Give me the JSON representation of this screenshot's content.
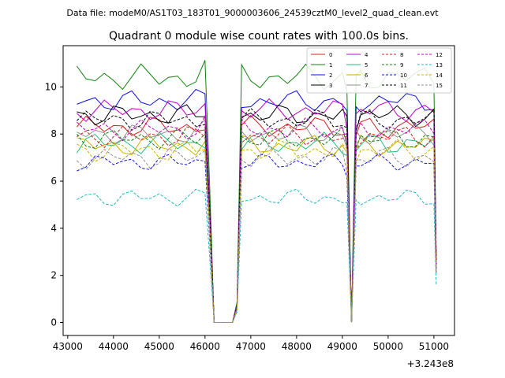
{
  "header": {
    "data_file": "Data file: modeM0/AS1T03_183T01_9000003606_24539cztM0_level2_quad_clean.evt"
  },
  "chart_data": {
    "type": "line",
    "title": "Quadrant 0 module wise count rates with 100.0s bins.",
    "xlabel": "",
    "ylabel": "",
    "x_offset_label": "+3.243e8",
    "xlim": [
      42900,
      51450
    ],
    "ylim": [
      -0.55,
      11.75
    ],
    "x_ticks": [
      43000,
      44000,
      45000,
      46000,
      47000,
      48000,
      49000,
      50000,
      51000
    ],
    "y_ticks": [
      0,
      2,
      4,
      6,
      8,
      10
    ],
    "legend_position": "top-right",
    "legend_columns": 4,
    "x": [
      43200,
      43400,
      43600,
      43800,
      44000,
      44200,
      44400,
      44600,
      44800,
      45000,
      45200,
      45400,
      45600,
      45800,
      46000,
      46100,
      46200,
      46300,
      46400,
      46500,
      46600,
      46700,
      46800,
      47000,
      47200,
      47400,
      47600,
      47800,
      48000,
      48200,
      48400,
      48600,
      48800,
      49000,
      49100,
      49200,
      49300,
      49400,
      49600,
      49800,
      50000,
      50200,
      50400,
      50600,
      50800,
      51000,
      51050
    ],
    "gap_pattern": [
      1,
      1,
      1,
      1,
      1,
      1,
      1,
      1,
      1,
      1,
      1,
      1,
      1,
      1,
      1.02,
      0.55,
      0,
      0,
      0,
      0,
      0,
      0.08,
      1,
      1,
      1,
      1,
      1,
      1,
      1,
      1,
      1,
      1,
      1,
      1,
      0.95,
      0,
      0.97,
      1,
      1,
      1,
      1,
      1,
      1,
      1,
      1,
      1,
      0.3
    ],
    "series": [
      {
        "name": "0",
        "color": "#d62020",
        "dash": "solid",
        "level": 8.3,
        "wiggle": 0.5
      },
      {
        "name": "1",
        "color": "#108010",
        "dash": "solid",
        "level": 10.4,
        "wiggle": 0.6
      },
      {
        "name": "2",
        "color": "#1010e0",
        "dash": "solid",
        "level": 9.4,
        "wiggle": 0.5
      },
      {
        "name": "3",
        "color": "#000000",
        "dash": "solid",
        "level": 8.8,
        "wiggle": 0.5
      },
      {
        "name": "4",
        "color": "#c000c0",
        "dash": "solid",
        "level": 9.0,
        "wiggle": 0.5
      },
      {
        "name": "5",
        "color": "#20c080",
        "dash": "solid",
        "level": 7.6,
        "wiggle": 0.5
      },
      {
        "name": "6",
        "color": "#d0b000",
        "dash": "solid",
        "level": 7.5,
        "wiggle": 0.5
      },
      {
        "name": "7",
        "color": "#909090",
        "dash": "solid",
        "level": 8.0,
        "wiggle": 0.5
      },
      {
        "name": "8",
        "color": "#d62020",
        "dash": "dashed",
        "level": 7.9,
        "wiggle": 0.5
      },
      {
        "name": "9",
        "color": "#108010",
        "dash": "dashed",
        "level": 7.8,
        "wiggle": 0.5
      },
      {
        "name": "10",
        "color": "#1010e0",
        "dash": "dashed",
        "level": 6.8,
        "wiggle": 0.4
      },
      {
        "name": "11",
        "color": "#000000",
        "dash": "dashed",
        "level": 8.6,
        "wiggle": 0.5
      },
      {
        "name": "12",
        "color": "#c000c0",
        "dash": "dashed",
        "level": 8.2,
        "wiggle": 0.5
      },
      {
        "name": "13",
        "color": "#20b8c0",
        "dash": "dashed",
        "level": 5.3,
        "wiggle": 0.4
      },
      {
        "name": "14",
        "color": "#d0b000",
        "dash": "dashed",
        "level": 7.3,
        "wiggle": 0.5
      },
      {
        "name": "15",
        "color": "#909090",
        "dash": "dashed",
        "level": 7.0,
        "wiggle": 0.5
      }
    ]
  }
}
